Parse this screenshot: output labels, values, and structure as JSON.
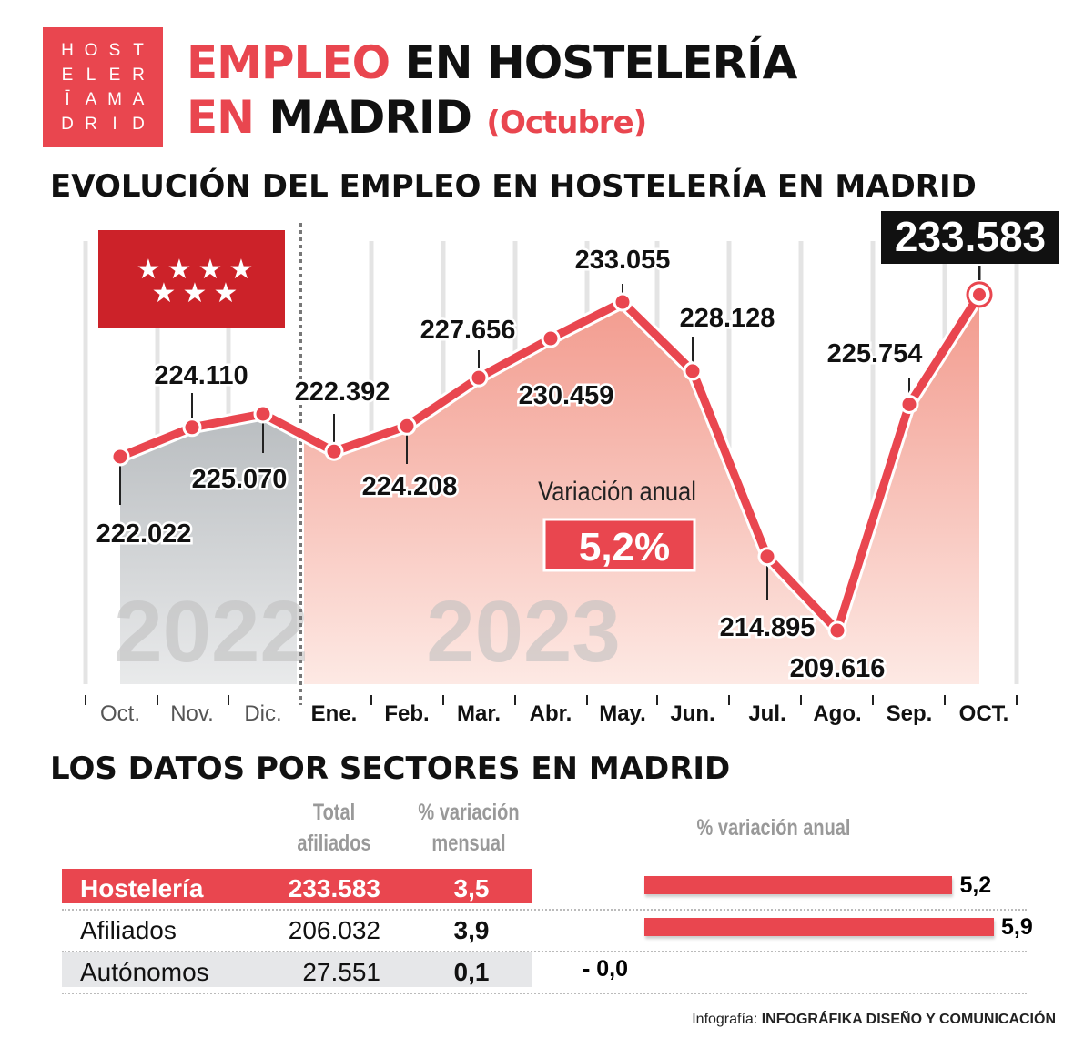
{
  "logo": {
    "letters": [
      "H",
      "O",
      "S",
      "T",
      "E",
      "L",
      "E",
      "R",
      "Ī",
      "A",
      "M",
      "A",
      "D",
      "R",
      "I",
      "D"
    ]
  },
  "header": {
    "title_red_1": "EMPLEO",
    "title_black_1": " EN HOSTELERÍA",
    "title_red_2": "EN",
    "title_black_2": " MADRID ",
    "title_paren": "(Octubre)"
  },
  "chart_title": "EVOLUCIÓN DEL EMPLEO EN HOSTELERÍA EN MADRID",
  "chart_data": {
    "type": "area",
    "categories": [
      "Oct.",
      "Nov.",
      "Dic.",
      "Ene.",
      "Feb.",
      "Mar.",
      "Abr.",
      "May.",
      "Jun.",
      "Jul.",
      "Ago.",
      "Sep.",
      "OCT."
    ],
    "values": [
      222.022,
      224.11,
      225.07,
      222.392,
      224.208,
      227.656,
      230.459,
      233.055,
      228.128,
      214.895,
      209.616,
      225.754,
      233.583
    ],
    "labels": [
      "222.022",
      "224.110",
      "225.070",
      "222.392",
      "224.208",
      "227.656",
      "230.459",
      "233.055",
      "228.128",
      "214.895",
      "209.616",
      "225.754",
      "233.583"
    ],
    "year_labels": [
      "2022",
      "2023"
    ],
    "annotation_label": "Variación anual",
    "annotation_value": "5,2%",
    "grid": true,
    "colors": {
      "line": "#e9464f",
      "area_2022": "#c9ccce",
      "area_2023": "#f4b3a8",
      "highlight_box": "#111111"
    }
  },
  "sectors": {
    "title": "LOS DATOS POR SECTORES EN MADRID",
    "headers": {
      "total": [
        "Total",
        "afiliados"
      ],
      "mensual": [
        "% variación",
        "mensual"
      ],
      "anual": "% variación anual"
    },
    "rows": [
      {
        "name": "Hostelería",
        "total": "233.583",
        "mensual": "3,5",
        "anual": 5.2,
        "anual_label": "5,2"
      },
      {
        "name": "Afiliados",
        "total": "206.032",
        "mensual": "3,9",
        "anual": 5.9,
        "anual_label": "5,9"
      },
      {
        "name": "Autónomos",
        "total": "27.551",
        "mensual": "0,1",
        "anual": 0.0,
        "anual_label": "- 0,0"
      }
    ]
  },
  "credit": {
    "prefix": "Infografía: ",
    "name": "INFOGRÁFIKA DISEÑO Y COMUNICACIÓN"
  }
}
